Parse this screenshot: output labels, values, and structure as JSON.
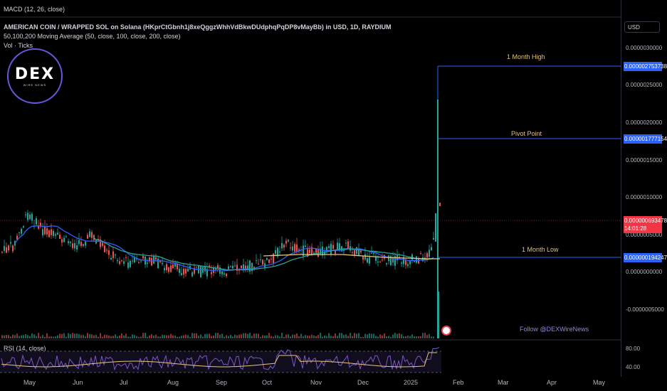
{
  "macd_label": "MACD (12, 26, close)",
  "title": "AMERICAN COIN / WRAPPED SOL on Solana (HKprCtGbnh1j8xeQggzWhhVdBkwDUdphqPqDP8vMayBb) in USD, 1D, RAYDIUM",
  "ma_label": "50,100,200 Moving Average (50, close, 100, close, 200, close)",
  "vol_label": "Vol · Ticks",
  "rsi_label": "RSI (14, close)",
  "logo": {
    "text": "DEX",
    "sub": "WIRE NEWS"
  },
  "currency": "USD",
  "price_ticks": [
    "0.0000030000",
    "0.0000025000",
    "0.0000020000",
    "0.0000015000",
    "0.0000010000",
    "0.0000005000",
    "0.0000000000",
    "-0.0000005000"
  ],
  "rsi_ticks": [
    "80.00",
    "40.00"
  ],
  "price_boxes": {
    "high": "0.000002753738",
    "pivot": "0.000001777154",
    "last": "0.000000693478",
    "countdown": "14:01:28",
    "low": "0.000000194247"
  },
  "annotations": {
    "high": "1 Month High",
    "pivot": "Pivot Point",
    "low": "1 Month Low"
  },
  "follow": "Follow @DEXWireNews",
  "months": [
    "May",
    "Jun",
    "Jul",
    "Aug",
    "Sep",
    "Oct",
    "Nov",
    "Dec",
    "2025",
    "Feb",
    "Mar",
    "Apr",
    "May"
  ],
  "colors": {
    "up": "#26a69a",
    "down": "#ef5350",
    "ma50": "#2962ff",
    "ma100": "#26a69a",
    "ma200": "#e8c77a",
    "rsi": "#7e57c2",
    "levels": "#2962ff",
    "last": "#f23645"
  }
}
